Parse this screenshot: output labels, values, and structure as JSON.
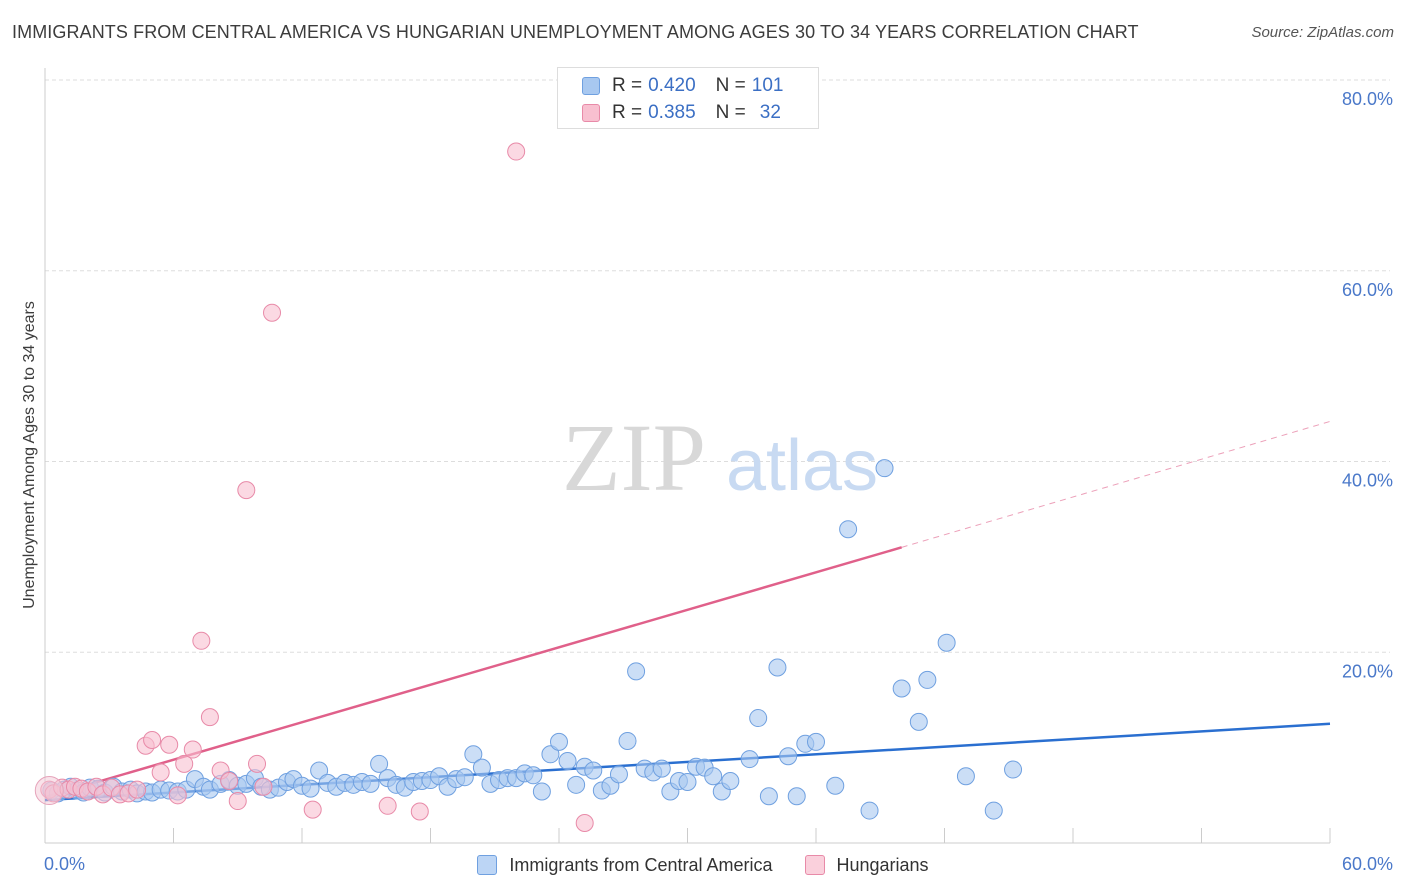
{
  "title": "IMMIGRANTS FROM CENTRAL AMERICA VS HUNGARIAN UNEMPLOYMENT AMONG AGES 30 TO 34 YEARS CORRELATION CHART",
  "source": "Source: ZipAtlas.com",
  "watermark": {
    "zip": "ZIP",
    "atlas": "atlas"
  },
  "legend": {
    "rows": [
      {
        "r_label": "R =",
        "r_value": "0.420",
        "n_label": "N =",
        "n_value": "101"
      },
      {
        "r_label": "R =",
        "r_value": "0.385",
        "n_label": "N =",
        "n_value": "32"
      }
    ]
  },
  "chart_data": {
    "type": "scatter",
    "ylabel": "Unemployment Among Ages 30 to 34 years",
    "xlim": [
      0,
      60
    ],
    "ylim": [
      0,
      80
    ],
    "x_tick_labels": [
      "0.0%",
      "60.0%"
    ],
    "y_ticks": [
      {
        "value": 20,
        "label": "20.0%"
      },
      {
        "value": 40,
        "label": "40.0%"
      },
      {
        "value": 60,
        "label": "60.0%"
      },
      {
        "value": 80,
        "label": "80.0%"
      }
    ],
    "grid": "horizontal dashed",
    "legend_position": "top-center",
    "series": [
      {
        "name": "Immigrants from Central America",
        "color": "#a8c8f0",
        "edge": "#6fa0e0",
        "line_color": "#2a6fd0",
        "trend": {
          "x0": 0,
          "y0": 4.5,
          "x1": 60,
          "y1": 12.5,
          "dashed_after": null
        },
        "points": [
          [
            0.3,
            5.5
          ],
          [
            0.6,
            5.2
          ],
          [
            0.9,
            5.6
          ],
          [
            1.2,
            5.9
          ],
          [
            1.5,
            5.5
          ],
          [
            1.8,
            5.3
          ],
          [
            2.1,
            5.8
          ],
          [
            2.5,
            5.7
          ],
          [
            2.8,
            5.3
          ],
          [
            3.2,
            5.9
          ],
          [
            3.6,
            5.4
          ],
          [
            4.0,
            5.6
          ],
          [
            4.3,
            5.2
          ],
          [
            4.7,
            5.4
          ],
          [
            5.0,
            5.3
          ],
          [
            5.4,
            5.6
          ],
          [
            5.8,
            5.5
          ],
          [
            6.2,
            5.4
          ],
          [
            6.6,
            5.6
          ],
          [
            7.0,
            6.7
          ],
          [
            7.4,
            5.9
          ],
          [
            7.7,
            5.6
          ],
          [
            8.2,
            6.2
          ],
          [
            8.6,
            6.6
          ],
          [
            9.0,
            6.0
          ],
          [
            9.4,
            6.2
          ],
          [
            9.8,
            6.8
          ],
          [
            10.1,
            5.9
          ],
          [
            10.5,
            5.6
          ],
          [
            10.9,
            5.8
          ],
          [
            11.3,
            6.4
          ],
          [
            11.6,
            6.7
          ],
          [
            12.0,
            6.0
          ],
          [
            12.4,
            5.7
          ],
          [
            12.8,
            7.6
          ],
          [
            13.2,
            6.3
          ],
          [
            13.6,
            5.9
          ],
          [
            14.0,
            6.3
          ],
          [
            14.4,
            6.1
          ],
          [
            14.8,
            6.4
          ],
          [
            15.2,
            6.2
          ],
          [
            15.6,
            8.3
          ],
          [
            16.0,
            6.8
          ],
          [
            16.4,
            6.1
          ],
          [
            16.8,
            5.8
          ],
          [
            17.2,
            6.4
          ],
          [
            17.6,
            6.5
          ],
          [
            18.0,
            6.6
          ],
          [
            18.4,
            7.0
          ],
          [
            18.8,
            5.9
          ],
          [
            19.2,
            6.7
          ],
          [
            19.6,
            6.9
          ],
          [
            20.0,
            9.3
          ],
          [
            20.4,
            7.9
          ],
          [
            20.8,
            6.2
          ],
          [
            21.2,
            6.6
          ],
          [
            21.6,
            6.8
          ],
          [
            22.0,
            6.8
          ],
          [
            22.4,
            7.3
          ],
          [
            22.8,
            7.1
          ],
          [
            23.2,
            5.4
          ],
          [
            23.6,
            9.3
          ],
          [
            24.0,
            10.6
          ],
          [
            24.4,
            8.6
          ],
          [
            24.8,
            6.1
          ],
          [
            25.2,
            8.0
          ],
          [
            25.6,
            7.6
          ],
          [
            26.0,
            5.5
          ],
          [
            26.4,
            6.0
          ],
          [
            26.8,
            7.2
          ],
          [
            27.2,
            10.7
          ],
          [
            27.6,
            18.0
          ],
          [
            28.0,
            7.8
          ],
          [
            28.4,
            7.4
          ],
          [
            28.8,
            7.8
          ],
          [
            29.2,
            5.4
          ],
          [
            29.6,
            6.5
          ],
          [
            30.0,
            6.4
          ],
          [
            30.4,
            8.0
          ],
          [
            30.8,
            7.9
          ],
          [
            31.2,
            7.0
          ],
          [
            31.6,
            5.4
          ],
          [
            32.0,
            6.5
          ],
          [
            32.9,
            8.8
          ],
          [
            33.3,
            13.1
          ],
          [
            33.8,
            4.9
          ],
          [
            34.2,
            18.4
          ],
          [
            34.7,
            9.1
          ],
          [
            35.1,
            4.9
          ],
          [
            35.5,
            10.4
          ],
          [
            36.0,
            10.6
          ],
          [
            36.9,
            6.0
          ],
          [
            37.5,
            32.9
          ],
          [
            38.5,
            3.4
          ],
          [
            39.2,
            39.3
          ],
          [
            40.0,
            16.2
          ],
          [
            40.8,
            12.7
          ],
          [
            41.2,
            17.1
          ],
          [
            42.1,
            21.0
          ],
          [
            43.0,
            7.0
          ],
          [
            44.3,
            3.4
          ],
          [
            45.2,
            7.7
          ]
        ]
      },
      {
        "name": "Hungarians",
        "color": "#f8c0d0",
        "edge": "#e88aa8",
        "line_color": "#e0608a",
        "trend": {
          "x0": 0,
          "y0": 4.8,
          "x1": 40,
          "y1": 31.0,
          "x2": 60,
          "y2": 44.2
        },
        "points": [
          [
            0.2,
            5.6
          ],
          [
            0.4,
            5.2
          ],
          [
            0.8,
            5.8
          ],
          [
            1.1,
            5.6
          ],
          [
            1.4,
            5.9
          ],
          [
            1.7,
            5.7
          ],
          [
            2.0,
            5.4
          ],
          [
            2.4,
            5.9
          ],
          [
            2.7,
            5.1
          ],
          [
            3.1,
            5.8
          ],
          [
            3.5,
            5.1
          ],
          [
            3.9,
            5.2
          ],
          [
            4.3,
            5.6
          ],
          [
            4.7,
            10.2
          ],
          [
            5.0,
            10.8
          ],
          [
            5.4,
            7.4
          ],
          [
            5.8,
            10.3
          ],
          [
            6.2,
            5.0
          ],
          [
            6.5,
            8.3
          ],
          [
            6.9,
            9.8
          ],
          [
            7.3,
            21.2
          ],
          [
            7.7,
            13.2
          ],
          [
            8.2,
            7.6
          ],
          [
            8.6,
            6.5
          ],
          [
            9.0,
            4.4
          ],
          [
            9.4,
            37.0
          ],
          [
            9.9,
            8.3
          ],
          [
            10.2,
            5.9
          ],
          [
            10.6,
            55.6
          ],
          [
            12.5,
            3.5
          ],
          [
            16.0,
            3.9
          ],
          [
            22.0,
            72.5
          ],
          [
            17.5,
            3.3
          ],
          [
            25.2,
            2.1
          ]
        ]
      }
    ]
  }
}
